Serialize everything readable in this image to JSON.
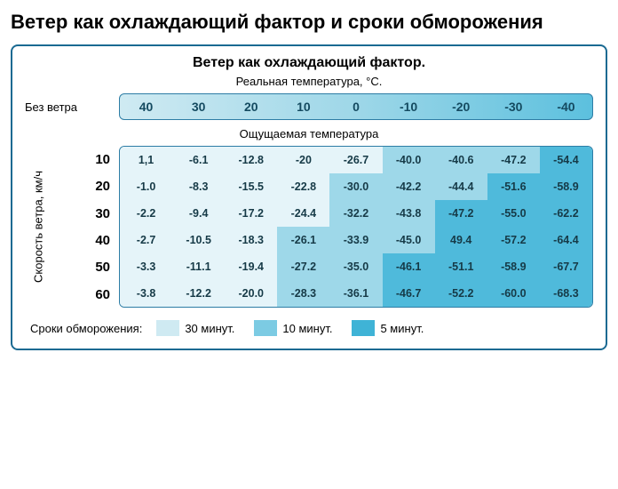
{
  "page_title": "Ветер как охлаждающий фактор и сроки обморожения",
  "panel": {
    "title": "Ветер как охлаждающий фактор.",
    "real_temp_label": "Реальная температура, °C.",
    "no_wind_label": "Без ветра",
    "felt_temp_label": "Ощущаемая температура",
    "y_axis_label": "Скорость ветра, км/ч",
    "legend_label": "Сроки обморожения:",
    "legend_items": [
      {
        "label": "30 минут.",
        "color": "#cfeaf2"
      },
      {
        "label": "10 минут.",
        "color": "#7ccbe3"
      },
      {
        "label": "5 минут.",
        "color": "#3fb3d6"
      }
    ],
    "border_color": "#1a6a92"
  },
  "chart": {
    "type": "heatmap-table",
    "temps": [
      "40",
      "30",
      "20",
      "10",
      "0",
      "-10",
      "-20",
      "-30",
      "-40"
    ],
    "speeds": [
      "10",
      "20",
      "30",
      "40",
      "50",
      "60"
    ],
    "values": [
      [
        "1,1",
        "-6.1",
        "-12.8",
        "-20",
        "-26.7",
        "-40.0",
        "-40.6",
        "-47.2",
        "-54.4"
      ],
      [
        "-1.0",
        "-8.3",
        "-15.5",
        "-22.8",
        "-30.0",
        "-42.2",
        "-44.4",
        "-51.6",
        "-58.9"
      ],
      [
        "-2.2",
        "-9.4",
        "-17.2",
        "-24.4",
        "-32.2",
        "-43.8",
        "-47.2",
        "-55.0",
        "-62.2"
      ],
      [
        "-2.7",
        "-10.5",
        "-18.3",
        "-26.1",
        "-33.9",
        "-45.0",
        "49.4",
        "-57.2",
        "-64.4"
      ],
      [
        "-3.3",
        "-11.1",
        "-19.4",
        "-27.2",
        "-35.0",
        "-46.1",
        "-51.1",
        "-58.9",
        "-67.7"
      ],
      [
        "-3.8",
        "-12.2",
        "-20.0",
        "-28.3",
        "-36.1",
        "-46.7",
        "-52.2",
        "-60.0",
        "-68.3"
      ]
    ],
    "zone": [
      [
        0,
        0,
        0,
        0,
        0,
        1,
        1,
        1,
        2
      ],
      [
        0,
        0,
        0,
        0,
        1,
        1,
        1,
        2,
        2
      ],
      [
        0,
        0,
        0,
        0,
        1,
        1,
        2,
        2,
        2
      ],
      [
        0,
        0,
        0,
        1,
        1,
        1,
        2,
        2,
        2
      ],
      [
        0,
        0,
        0,
        1,
        1,
        2,
        2,
        2,
        2
      ],
      [
        0,
        0,
        0,
        1,
        1,
        2,
        2,
        2,
        2
      ]
    ],
    "zone_colors": [
      "#e5f4f9",
      "#9ed8e9",
      "#4fbadb"
    ],
    "header_strip_gradient": [
      "#cfeaf2",
      "#9ed7e8",
      "#5cc0de"
    ],
    "cell_text_color": "#163a47",
    "font_family": "Arial",
    "value_fontsize": 12.5,
    "speed_fontsize": 15,
    "temp_header_fontsize": 14
  }
}
